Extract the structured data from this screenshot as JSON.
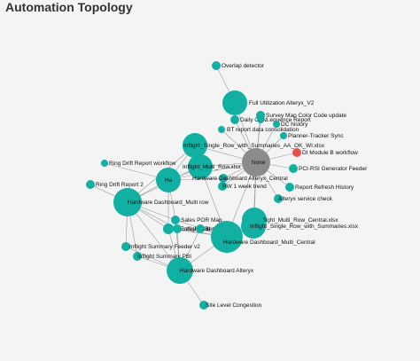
{
  "header": {
    "title": "Automation Topology"
  },
  "colors": {
    "node": "#12b0a2",
    "hub": "#8b8b8b",
    "alert": "#e8514b",
    "edge": "#999999"
  },
  "graph": {
    "nodes": [
      {
        "id": "overlap",
        "label": "Overlap detector",
        "color": "node"
      },
      {
        "id": "futil",
        "label": "Full Utilization Alteryx_V2",
        "color": "node"
      },
      {
        "id": "survey",
        "label": "Survey Map Color Code update",
        "color": "node"
      },
      {
        "id": "dailygsm",
        "label": "Daily GSM",
        "color": "node"
      },
      {
        "id": "seqreport",
        "label": "...equence Report",
        "color": "node"
      },
      {
        "id": "dchistory",
        "label": "DC history",
        "color": "node"
      },
      {
        "id": "btreport",
        "label": "BT report data consolidation",
        "color": "node"
      },
      {
        "id": "planner",
        "label": "Planner-Tracker Sync",
        "color": "node"
      },
      {
        "id": "inflightAA",
        "label": "Inflight_Single_Row_with_Summaries_AA_OK_WI.xlsx",
        "color": "node"
      },
      {
        "id": "none",
        "label": "None",
        "color": "hub"
      },
      {
        "id": "dimodule",
        "label": "DI Module B workflow",
        "color": "alert"
      },
      {
        "id": "inflightmulti",
        "label": "Inflight_Multi_Row.xlsx",
        "color": "node"
      },
      {
        "id": "pcirsi",
        "label": "PCI-RSI Generator Feeder",
        "color": "node"
      },
      {
        "id": "ringdrift",
        "label": "Ring Drift Report workflow",
        "color": "node"
      },
      {
        "id": "hdalt",
        "label": "Hardware Dashboard Alteryx_Central",
        "color": "node"
      },
      {
        "id": "hublabel",
        "label": "Ha",
        "color": "node"
      },
      {
        "id": "rr1week",
        "label": "RW 1 week trend",
        "color": "node"
      },
      {
        "id": "refresh",
        "label": "Report Refresh History",
        "color": "node"
      },
      {
        "id": "ringdrift2",
        "label": "Ring Drift Report 2",
        "color": "node"
      },
      {
        "id": "altsvc",
        "label": "Alteryx service check",
        "color": "node"
      },
      {
        "id": "hdmulti",
        "label": "Hardware Dashboard_Multi row",
        "color": "node"
      },
      {
        "id": "inflightmultixlsx",
        "label": "Inflight_Multi_Row_Central.xlsx",
        "color": "node"
      },
      {
        "id": "salespor",
        "label": "Sales POR Map",
        "color": "node"
      },
      {
        "id": "inflightsingle",
        "label": "Inflight_Single_Row_with_Summaries.xlsx",
        "color": "node"
      },
      {
        "id": "lte",
        "label": "LTE availabilit",
        "color": "node"
      },
      {
        "id": "inflightpblsm",
        "label": "Inflight PBI sum",
        "color": "node"
      },
      {
        "id": "inflightrep",
        "label": "...report",
        "color": "node"
      },
      {
        "id": "hdmulticentral",
        "label": "Hardware Dashboard_Multi_Central",
        "color": "node"
      },
      {
        "id": "summaryfeeder",
        "label": "Inflight Summary Feeder v2",
        "color": "node"
      },
      {
        "id": "summarypbi",
        "label": "Inflight Summary PBI",
        "color": "node"
      },
      {
        "id": "hdalteryx",
        "label": "Hardware Dashboard Alteryx",
        "color": "node"
      },
      {
        "id": "sitelevel",
        "label": "Site Level Congestion",
        "color": "node"
      }
    ],
    "edges": [
      [
        "overlap",
        "futil"
      ],
      [
        "futil",
        "none"
      ],
      [
        "survey",
        "none"
      ],
      [
        "dailygsm",
        "none"
      ],
      [
        "seqreport",
        "none"
      ],
      [
        "dchistory",
        "none"
      ],
      [
        "btreport",
        "none"
      ],
      [
        "planner",
        "none"
      ],
      [
        "inflightAA",
        "none"
      ],
      [
        "dimodule",
        "none"
      ],
      [
        "inflightmulti",
        "none"
      ],
      [
        "pcirsi",
        "none"
      ],
      [
        "hdalt",
        "none"
      ],
      [
        "rr1week",
        "none"
      ],
      [
        "refresh",
        "none"
      ],
      [
        "altsvc",
        "none"
      ],
      [
        "inflightmultixlsx",
        "none"
      ],
      [
        "hdmulticentral",
        "none"
      ],
      [
        "inflightsingle",
        "none"
      ],
      [
        "hublabel",
        "none"
      ],
      [
        "ringdrift",
        "hublabel"
      ],
      [
        "ringdrift2",
        "hdmulti"
      ],
      [
        "hdmulti",
        "hublabel"
      ],
      [
        "hdmulti",
        "inflightmulti"
      ],
      [
        "hdmulti",
        "inflightAA"
      ],
      [
        "hdmulti",
        "salespor"
      ],
      [
        "hdmulti",
        "lte"
      ],
      [
        "hdmulti",
        "summaryfeeder"
      ],
      [
        "hdmulti",
        "summarypbi"
      ],
      [
        "hdmulti",
        "hdalteryx"
      ],
      [
        "hdmulti",
        "inflightpblsm"
      ],
      [
        "hublabel",
        "inflightmulti"
      ],
      [
        "hublabel",
        "inflightAA"
      ],
      [
        "hublabel",
        "hdalt"
      ],
      [
        "hublabel",
        "salespor"
      ],
      [
        "hublabel",
        "lte"
      ],
      [
        "hdmulticentral",
        "salespor"
      ],
      [
        "hdmulticentral",
        "lte"
      ],
      [
        "hdmulticentral",
        "inflightpblsm"
      ],
      [
        "hdmulticentral",
        "inflightrep"
      ],
      [
        "hdmulticentral",
        "hdalteryx"
      ],
      [
        "hdmulticentral",
        "inflightsingle"
      ],
      [
        "hdmulticentral",
        "inflightmultixlsx"
      ],
      [
        "hdalteryx",
        "summaryfeeder"
      ],
      [
        "hdalteryx",
        "summarypbi"
      ],
      [
        "hdalteryx",
        "lte"
      ],
      [
        "hdalteryx",
        "salespor"
      ],
      [
        "hdalteryx",
        "sitelevel"
      ],
      [
        "hdalteryx",
        "inflightpblsm"
      ],
      [
        "inflightsingle",
        "inflightmultixlsx"
      ],
      [
        "hdmulticentral",
        "inflightmulti"
      ],
      [
        "hdalteryx",
        "inflightrep"
      ]
    ]
  }
}
